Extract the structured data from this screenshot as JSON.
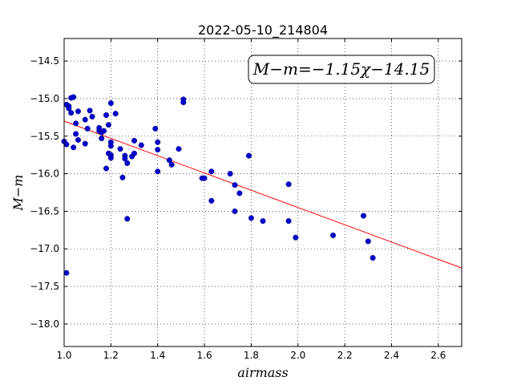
{
  "chart_data": {
    "type": "scatter",
    "title": "2022-05-10_214804",
    "xlabel": "airmass",
    "ylabel": "M−m",
    "xlim": [
      1.0,
      2.7
    ],
    "ylim": [
      -18.3,
      -14.2
    ],
    "x_ticks": [
      "1.0",
      "1.2",
      "1.4",
      "1.6",
      "1.8",
      "2.0",
      "2.2",
      "2.4",
      "2.6"
    ],
    "y_ticks": [
      "−14.5",
      "−15.0",
      "−15.5",
      "−16.0",
      "−16.5",
      "−17.0",
      "−17.5",
      "−18.0"
    ],
    "grid": true,
    "annotation": "M−m=−1.15χ−14.15",
    "colors": {
      "points": "#0000cc",
      "fit": "#ff0000"
    },
    "fit": {
      "slope": -1.15,
      "intercept": -14.15
    },
    "points": [
      [
        1.0,
        -15.57
      ],
      [
        1.01,
        -15.08
      ],
      [
        1.01,
        -15.61
      ],
      [
        1.01,
        -17.32
      ],
      [
        1.02,
        -15.1
      ],
      [
        1.02,
        -15.13
      ],
      [
        1.03,
        -14.99
      ],
      [
        1.03,
        -15.19
      ],
      [
        1.04,
        -15.65
      ],
      [
        1.04,
        -14.98
      ],
      [
        1.05,
        -15.47
      ],
      [
        1.05,
        -15.33
      ],
      [
        1.06,
        -15.55
      ],
      [
        1.06,
        -15.17
      ],
      [
        1.09,
        -15.28
      ],
      [
        1.09,
        -15.6
      ],
      [
        1.1,
        -15.4
      ],
      [
        1.11,
        -15.16
      ],
      [
        1.12,
        -15.24
      ],
      [
        1.15,
        -15.43
      ],
      [
        1.15,
        -15.39
      ],
      [
        1.16,
        -15.45
      ],
      [
        1.16,
        -15.53
      ],
      [
        1.17,
        -15.43
      ],
      [
        1.18,
        -15.22
      ],
      [
        1.18,
        -15.93
      ],
      [
        1.19,
        -15.35
      ],
      [
        1.19,
        -15.73
      ],
      [
        1.2,
        -15.06
      ],
      [
        1.2,
        -15.58
      ],
      [
        1.2,
        -15.63
      ],
      [
        1.2,
        -15.75
      ],
      [
        1.2,
        -15.79
      ],
      [
        1.22,
        -15.2
      ],
      [
        1.24,
        -15.67
      ],
      [
        1.25,
        -16.05
      ],
      [
        1.26,
        -15.76
      ],
      [
        1.26,
        -15.8
      ],
      [
        1.27,
        -15.86
      ],
      [
        1.27,
        -16.6
      ],
      [
        1.29,
        -15.77
      ],
      [
        1.3,
        -15.73
      ],
      [
        1.3,
        -15.56
      ],
      [
        1.33,
        -15.62
      ],
      [
        1.39,
        -15.4
      ],
      [
        1.4,
        -15.58
      ],
      [
        1.4,
        -15.68
      ],
      [
        1.4,
        -15.97
      ],
      [
        1.45,
        -15.82
      ],
      [
        1.46,
        -15.88
      ],
      [
        1.49,
        -15.67
      ],
      [
        1.51,
        -15.01
      ],
      [
        1.51,
        -15.05
      ],
      [
        1.59,
        -16.06
      ],
      [
        1.6,
        -16.06
      ],
      [
        1.63,
        -15.97
      ],
      [
        1.63,
        -16.36
      ],
      [
        1.71,
        -16.0
      ],
      [
        1.73,
        -16.15
      ],
      [
        1.73,
        -16.5
      ],
      [
        1.75,
        -16.26
      ],
      [
        1.79,
        -15.76
      ],
      [
        1.8,
        -16.59
      ],
      [
        1.85,
        -16.63
      ],
      [
        1.96,
        -16.14
      ],
      [
        1.96,
        -16.63
      ],
      [
        1.99,
        -16.85
      ],
      [
        2.15,
        -16.82
      ],
      [
        2.28,
        -16.56
      ],
      [
        2.3,
        -16.9
      ],
      [
        2.32,
        -17.12
      ]
    ]
  }
}
